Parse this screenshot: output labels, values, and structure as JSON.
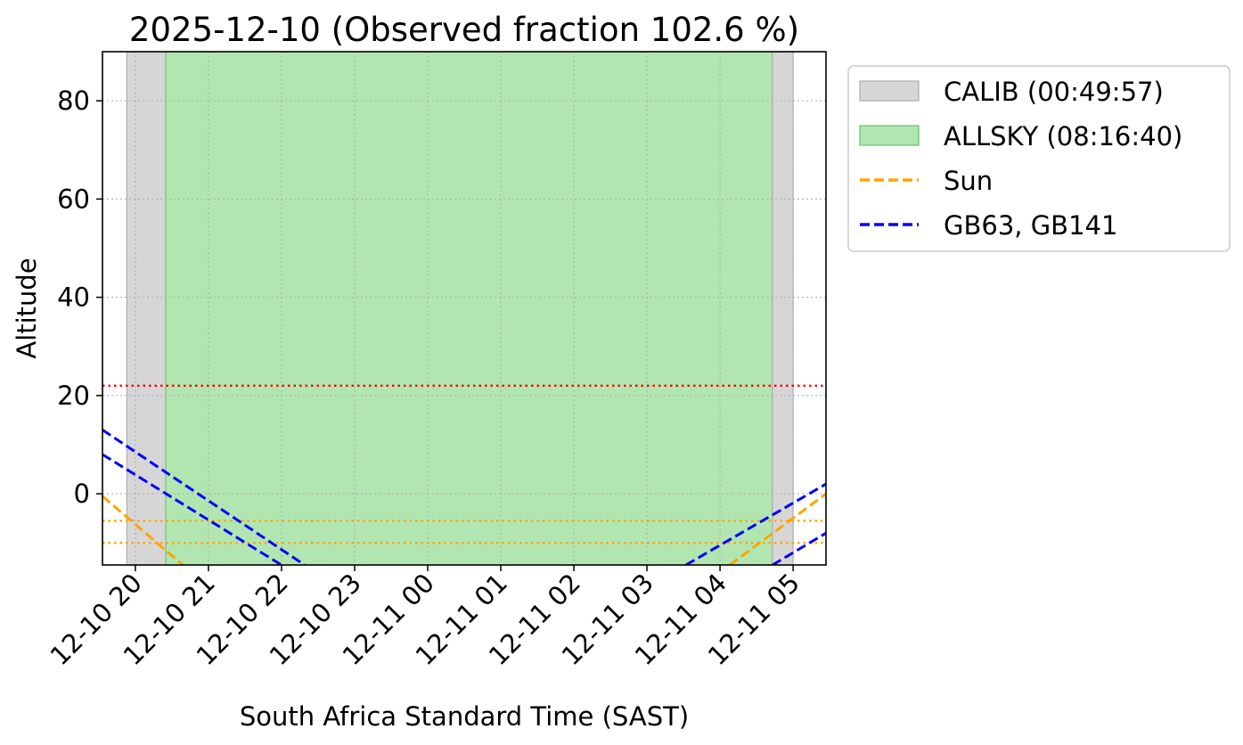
{
  "chart_data": {
    "type": "line",
    "title": "2025-12-10 (Observed fraction 102.6 %)",
    "xlabel": "South Africa Standard Time (SAST)",
    "ylabel": "Altitude",
    "x_range": [
      "2025-12-10T19:33",
      "2025-12-11T05:27"
    ],
    "ylim": [
      -14.5,
      90
    ],
    "x_ticks": [
      {
        "time": "2025-12-10T20:00",
        "label": "12-10 20"
      },
      {
        "time": "2025-12-10T21:00",
        "label": "12-10 21"
      },
      {
        "time": "2025-12-10T22:00",
        "label": "12-10 22"
      },
      {
        "time": "2025-12-10T23:00",
        "label": "12-10 23"
      },
      {
        "time": "2025-12-11T00:00",
        "label": "12-11 00"
      },
      {
        "time": "2025-12-11T01:00",
        "label": "12-11 01"
      },
      {
        "time": "2025-12-11T02:00",
        "label": "12-11 02"
      },
      {
        "time": "2025-12-11T03:00",
        "label": "12-11 03"
      },
      {
        "time": "2025-12-11T04:00",
        "label": "12-11 04"
      },
      {
        "time": "2025-12-11T05:00",
        "label": "12-11 05"
      }
    ],
    "y_ticks": [
      0,
      20,
      40,
      60,
      80
    ],
    "grid": true,
    "legend_position": "outside-right-top",
    "spans": [
      {
        "name": "CALIB",
        "start": "2025-12-10T19:53",
        "end": "2025-12-10T20:25",
        "color": "#d6d6d6",
        "edge": "#b0b0b0"
      },
      {
        "name": "ALLSKY",
        "start": "2025-12-10T20:25",
        "end": "2025-12-11T04:43",
        "color": "#b1e6b1",
        "edge": "#6ec66e"
      },
      {
        "name": "CALIB",
        "start": "2025-12-11T04:43",
        "end": "2025-12-11T05:00",
        "color": "#d6d6d6",
        "edge": "#b0b0b0"
      }
    ],
    "hlines": [
      {
        "y": 22,
        "color": "#ff0000",
        "style": "dotted"
      },
      {
        "y": -5.5,
        "color": "#ffa500",
        "style": "dotted"
      },
      {
        "y": -10,
        "color": "#ffa500",
        "style": "dotted"
      }
    ],
    "series": [
      {
        "name": "Sun",
        "color": "#ffa500",
        "style": "dashed",
        "points": [
          [
            "2025-12-10T19:33",
            -0.5
          ],
          [
            "2025-12-10T20:39",
            -14.5
          ]
        ]
      },
      {
        "name": "Sun",
        "color": "#ffa500",
        "style": "dashed",
        "points": [
          [
            "2025-12-11T04:08",
            -14.5
          ],
          [
            "2025-12-11T05:27",
            0
          ]
        ]
      },
      {
        "name": "GB63, GB141",
        "color": "#0000ff",
        "style": "dashed",
        "points": [
          [
            "2025-12-10T19:33",
            13
          ],
          [
            "2025-12-10T22:19",
            -14.5
          ]
        ]
      },
      {
        "name": "GB63, GB141",
        "color": "#0000ff",
        "style": "dashed",
        "points": [
          [
            "2025-12-10T19:33",
            8
          ],
          [
            "2025-12-10T22:00",
            -14.5
          ]
        ]
      },
      {
        "name": "GB63, GB141",
        "color": "#0000ff",
        "style": "dashed",
        "points": [
          [
            "2025-12-11T03:32",
            -14.5
          ],
          [
            "2025-12-11T05:27",
            2
          ]
        ]
      },
      {
        "name": "GB63, GB141",
        "color": "#0000ff",
        "style": "dashed",
        "points": [
          [
            "2025-12-11T04:43",
            -14.5
          ],
          [
            "2025-12-11T05:27",
            -8
          ]
        ]
      }
    ],
    "legend": [
      {
        "label": "CALIB (00:49:57)",
        "kind": "patch",
        "color": "#d6d6d6",
        "edge": "#b0b0b0"
      },
      {
        "label": "ALLSKY (08:16:40)",
        "kind": "patch",
        "color": "#b1e6b1",
        "edge": "#6ec66e"
      },
      {
        "label": "Sun",
        "kind": "line",
        "color": "#ffa500"
      },
      {
        "label": "GB63, GB141",
        "kind": "line",
        "color": "#0000ff"
      }
    ]
  }
}
